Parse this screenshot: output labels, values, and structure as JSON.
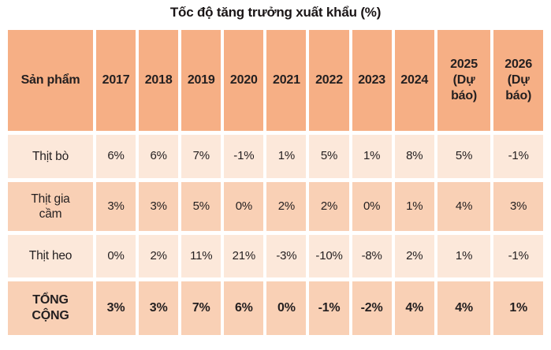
{
  "title": "Tốc độ tăng trưởng xuất khẩu (%)",
  "colors": {
    "header_bg": "#f6af85",
    "row_light_bg": "#fce8da",
    "row_medium_bg": "#f9d0b5",
    "text": "#231f20",
    "background": "#ffffff"
  },
  "chart_data": {
    "type": "table",
    "title": "Tốc độ tăng trưởng xuất khẩu (%)",
    "unit": "%",
    "columns": [
      "Sản phẩm",
      "2017",
      "2018",
      "2019",
      "2020",
      "2021",
      "2022",
      "2023",
      "2024",
      "2025 (Dự báo)",
      "2026 (Dự báo)"
    ],
    "rows": [
      {
        "label": "Thịt bò",
        "values": [
          "6%",
          "6%",
          "7%",
          "-1%",
          "1%",
          "5%",
          "1%",
          "8%",
          "5%",
          "-1%"
        ]
      },
      {
        "label": "Thịt gia cầm",
        "values": [
          "3%",
          "3%",
          "5%",
          "0%",
          "2%",
          "2%",
          "0%",
          "1%",
          "4%",
          "3%"
        ]
      },
      {
        "label": "Thịt heo",
        "values": [
          "0%",
          "2%",
          "11%",
          "21%",
          "-3%",
          "-10%",
          "-8%",
          "2%",
          "1%",
          "-1%"
        ]
      },
      {
        "label": "TỔNG CỘNG",
        "values": [
          "3%",
          "3%",
          "7%",
          "6%",
          "0%",
          "-1%",
          "-2%",
          "4%",
          "4%",
          "1%"
        ]
      }
    ]
  }
}
